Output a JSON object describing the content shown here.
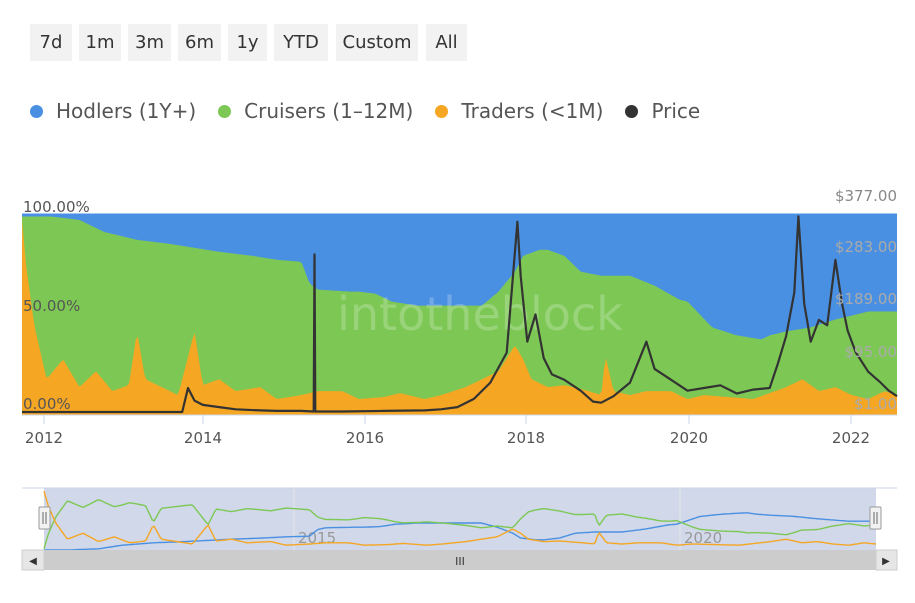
{
  "range_buttons": [
    "7d",
    "1m",
    "3m",
    "6m",
    "1y",
    "YTD",
    "Custom",
    "All"
  ],
  "legend": [
    {
      "label": "Hodlers (1Y+)",
      "color": "#4a90e2"
    },
    {
      "label": "Cruisers (1–12M)",
      "color": "#7dc855"
    },
    {
      "label": "Traders (<1M)",
      "color": "#f5a623"
    },
    {
      "label": "Price",
      "color": "#333333"
    }
  ],
  "watermark": "intotheblock",
  "chart_data": {
    "type": "area",
    "x_axis_ticks": [
      "2012",
      "2014",
      "2016",
      "2018",
      "2020",
      "2022"
    ],
    "y_left_ticks": [
      "100.00%",
      "50.00%",
      "0.00%"
    ],
    "y_left_range": [
      0,
      100
    ],
    "y_right_ticks": [
      "$377.00",
      "$283.00",
      "$189.00",
      "$95.00",
      "$1.00"
    ],
    "y_right_range": [
      1,
      377
    ],
    "x_range": [
      2011.9,
      2022.55
    ],
    "series": [
      {
        "name": "Traders (<1M)",
        "color": "#f5a623",
        "stacked": true,
        "x": [
          2011.9,
          2011.95,
          2012.05,
          2012.2,
          2012.4,
          2012.6,
          2012.8,
          2013.0,
          2013.2,
          2013.3,
          2013.4,
          2013.6,
          2013.8,
          2014.0,
          2014.1,
          2014.3,
          2014.5,
          2014.8,
          2015.0,
          2015.3,
          2015.5,
          2015.8,
          2016.0,
          2016.3,
          2016.5,
          2016.8,
          2017.0,
          2017.3,
          2017.5,
          2017.7,
          2017.9,
          2018.0,
          2018.1,
          2018.3,
          2018.5,
          2018.8,
          2018.95,
          2019.0,
          2019.1,
          2019.3,
          2019.5,
          2019.8,
          2020.0,
          2020.2,
          2020.5,
          2020.8,
          2021.0,
          2021.2,
          2021.4,
          2021.6,
          2021.8,
          2022.0,
          2022.2,
          2022.4,
          2022.55
        ],
        "values": [
          98,
          75,
          45,
          18,
          28,
          14,
          22,
          12,
          15,
          42,
          18,
          14,
          10,
          42,
          15,
          18,
          12,
          14,
          8,
          10,
          12,
          12,
          8,
          9,
          11,
          8,
          10,
          14,
          18,
          22,
          35,
          28,
          18,
          14,
          15,
          12,
          10,
          30,
          12,
          10,
          12,
          12,
          8,
          10,
          9,
          8,
          11,
          14,
          18,
          12,
          14,
          10,
          8,
          12,
          10
        ]
      },
      {
        "name": "Cruisers (1–12M)",
        "color": "#7dc855",
        "stacked": true,
        "x": [
          2011.9,
          2012.2,
          2012.6,
          2012.9,
          2013.3,
          2013.7,
          2014.0,
          2014.3,
          2014.7,
          2015.0,
          2015.3,
          2015.4,
          2015.5,
          2015.9,
          2016.0,
          2016.2,
          2016.4,
          2016.7,
          2016.9,
          2017.2,
          2017.5,
          2017.7,
          2017.9,
          2018.0,
          2018.2,
          2018.3,
          2018.5,
          2018.7,
          2018.95,
          2019.0,
          2019.3,
          2019.6,
          2019.9,
          2020.0,
          2020.3,
          2020.6,
          2020.9,
          2021.0,
          2021.2,
          2021.5,
          2021.8,
          2022.0,
          2022.2,
          2022.55
        ],
        "values": [
          100,
          100,
          98,
          92,
          88,
          86,
          84,
          82,
          80,
          78,
          77,
          66,
          63,
          62,
          62,
          61,
          57,
          55,
          55,
          55,
          55,
          62,
          72,
          80,
          83,
          83,
          80,
          72,
          70,
          70,
          70,
          65,
          58,
          57,
          44,
          40,
          38,
          40,
          42,
          44,
          48,
          50,
          52,
          52
        ]
      },
      {
        "name": "Hodlers (1Y+)",
        "color": "#4a90e2",
        "stacked": true,
        "values_note": "remainder to 100%"
      },
      {
        "name": "Price",
        "color": "#333333",
        "axis": "right",
        "x": [
          2011.9,
          2013.85,
          2013.92,
          2014.0,
          2014.1,
          2014.3,
          2014.5,
          2014.8,
          2015.0,
          2015.3,
          2015.45,
          2015.46,
          2015.47,
          2015.48,
          2015.49,
          2015.8,
          2016.3,
          2016.8,
          2017.0,
          2017.2,
          2017.4,
          2017.6,
          2017.8,
          2017.93,
          2017.97,
          2018.05,
          2018.15,
          2018.25,
          2018.35,
          2018.5,
          2018.7,
          2018.85,
          2018.95,
          2019.1,
          2019.3,
          2019.5,
          2019.6,
          2019.8,
          2020.0,
          2020.2,
          2020.4,
          2020.6,
          2020.8,
          2021.0,
          2021.1,
          2021.2,
          2021.3,
          2021.35,
          2021.42,
          2021.5,
          2021.6,
          2021.7,
          2021.8,
          2021.88,
          2021.95,
          2022.05,
          2022.2,
          2022.35,
          2022.45,
          2022.55
        ],
        "values": [
          1,
          1,
          45,
          22,
          14,
          10,
          6,
          4,
          3,
          3,
          2,
          290,
          2,
          2,
          2,
          2,
          3,
          4,
          6,
          10,
          25,
          55,
          110,
          350,
          250,
          130,
          180,
          100,
          70,
          60,
          40,
          20,
          18,
          30,
          55,
          130,
          80,
          60,
          40,
          45,
          50,
          35,
          42,
          45,
          90,
          140,
          220,
          360,
          200,
          130,
          170,
          160,
          280,
          200,
          150,
          110,
          75,
          55,
          40,
          30
        ]
      }
    ]
  },
  "navigator": {
    "labels": [
      "2015",
      "2020"
    ],
    "scroll_glyph": "III",
    "left_arrow": "◀",
    "right_arrow": "▶"
  }
}
